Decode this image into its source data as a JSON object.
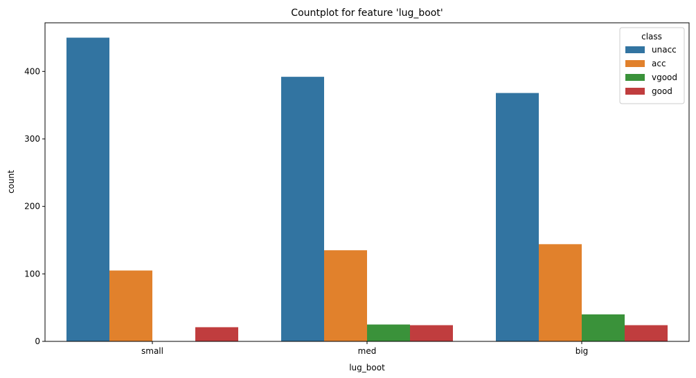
{
  "chart_data": {
    "type": "bar",
    "title": "Countplot for feature 'lug_boot'",
    "xlabel": "lug_boot",
    "ylabel": "count",
    "categories": [
      "small",
      "med",
      "big"
    ],
    "ylim": [
      0,
      472
    ],
    "yticks": [
      0,
      100,
      200,
      300,
      400
    ],
    "grid": false,
    "legend": {
      "title": "class",
      "placement": "top-right"
    },
    "series": [
      {
        "name": "unacc",
        "color": "#3274a1",
        "values": [
          450,
          392,
          368
        ]
      },
      {
        "name": "acc",
        "color": "#e1812c",
        "values": [
          105,
          135,
          144
        ]
      },
      {
        "name": "vgood",
        "color": "#3a923a",
        "values": [
          0,
          25,
          40
        ]
      },
      {
        "name": "good",
        "color": "#c03d3e",
        "values": [
          21,
          24,
          24
        ]
      }
    ]
  }
}
